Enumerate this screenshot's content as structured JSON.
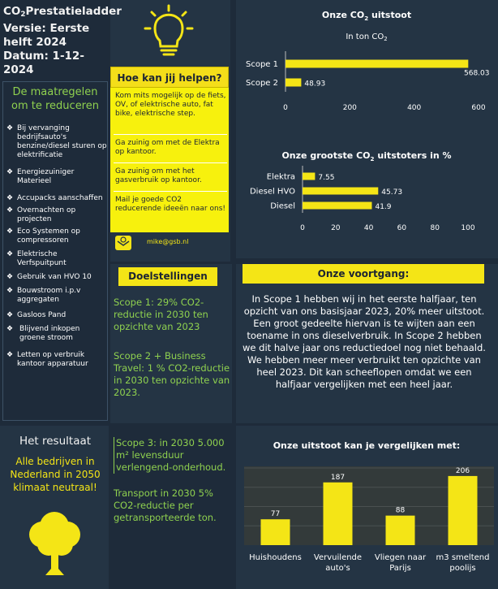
{
  "header": {
    "title_line1_a": "CO",
    "title_line1_sub": "2",
    "title_line1_b": "Prestatieladder",
    "version": "Versie: Eerste helft 2024",
    "date": "Datum: 1-12-2024"
  },
  "measures": {
    "heading": "De maatregelen om te reduceren",
    "items": [
      "Bij vervanging bedrijfsauto's benzine/diesel sturen op elektrificatie",
      "Energiezuiniger Materieel",
      "Accupacks aanschaffen",
      "Overnachten op projecten",
      "Eco Systemen op compressoren",
      "Elektrische Verfspuitpunt",
      "Gebruik van HVO 10",
      "Bouwstroom i.p.v aggregaten",
      "Gasloos Pand",
      "Blijvend inkopen groene stroom",
      "Letten op verbruik kantoor apparatuur"
    ]
  },
  "help": {
    "heading": "Hoe kan jij helpen?",
    "items": [
      "Kom mits mogelijk op de fiets, OV, of elektrische auto, fat bike, elektrische step.",
      "Ga zuinig om met de Elektra op kantoor.",
      "Ga zuinig om met het gasverbruik op kantoor.",
      "Mail je goede CO2 reducerende ideeën naar ons!"
    ],
    "email": "mike@gsb.nl"
  },
  "goals": {
    "heading": "Doelstellingen",
    "scope1": "Scope 1: 29% CO2-reductie in 2030 ten opzichte van 2023",
    "scope2": "Scope 2 + Business Travel: 1 % CO2-reductie in 2030 ten opzichte van 2023.",
    "scope3": "Scope 3: in 2030 5.000 m² levensduur verlengend-onderhoud.",
    "transport": "Transport in 2030 5% CO2-reductie per getransporteerde ton."
  },
  "progress": {
    "heading": "Onze voortgang:",
    "text": "In Scope 1 hebben wij in het eerste halfjaar, ten opzicht van ons basisjaar 2023, 20% meer uitstoot. Een groot gedeelte hiervan is te wijten aan een toename in ons dieselverbruik. In Scope 2 hebben we dit halve jaar ons reductiedoel nog niet behaald. We hebben meer meer verbruikt ten opzichte van heel 2023. Dit kan scheeflopen omdat we een halfjaar vergelijken met een heel jaar."
  },
  "result": {
    "heading": "Het resultaat",
    "text": "Alle bedrijven in Nederland in 2050 klimaat neutraal!"
  },
  "colors": {
    "accent": "#f4e516",
    "green": "#8fd14f",
    "panel": "#243444",
    "background": "#1e2b3a"
  },
  "icons": {
    "bulb": "lightbulb-icon",
    "mail": "envelope-icon",
    "tree": "tree-icon"
  },
  "chart_data": [
    {
      "type": "bar",
      "orientation": "horizontal",
      "title": "Onze CO2 uitstoot",
      "subtitle": "In ton CO2",
      "categories": [
        "Scope 1",
        "Scope 2"
      ],
      "values": [
        568.03,
        48.93
      ],
      "value_labels": [
        "568.03",
        "48.93"
      ],
      "xlim": [
        0,
        600
      ],
      "ticks": [
        0,
        200,
        400,
        600
      ]
    },
    {
      "type": "bar",
      "orientation": "horizontal",
      "title": "Onze grootste CO2 uitstoters in %",
      "categories": [
        "Elektra",
        "Diesel HVO",
        "Diesel"
      ],
      "values": [
        7.55,
        45.73,
        41.9
      ],
      "value_labels": [
        "7.55",
        "45.73",
        "41.9"
      ],
      "xlim": [
        0,
        100
      ],
      "ticks": [
        0,
        20,
        40,
        60,
        80,
        100
      ]
    },
    {
      "type": "bar",
      "title": "Onze uitstoot kan je vergelijken met:",
      "categories": [
        "Huishoudens",
        "Vervuilende auto's",
        "Vliegen naar Parijs",
        "m3 smeltend poolijs"
      ],
      "values": [
        77,
        187,
        88,
        206
      ],
      "ylim": [
        0,
        230
      ]
    }
  ]
}
